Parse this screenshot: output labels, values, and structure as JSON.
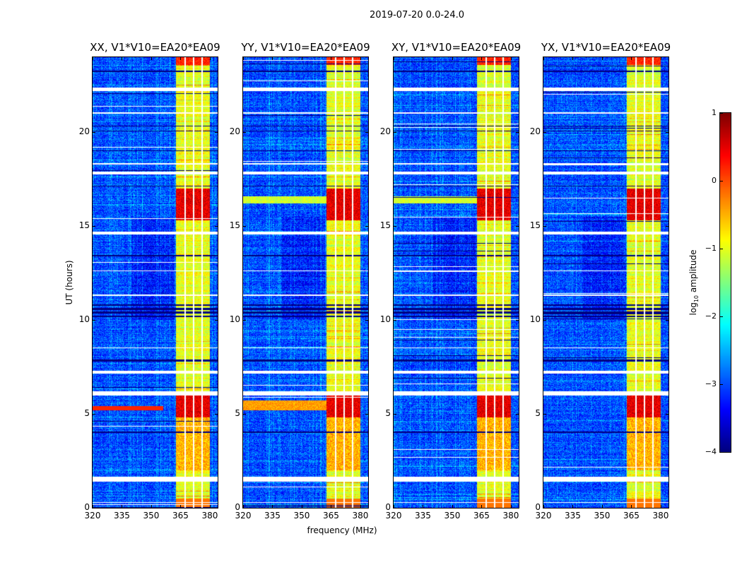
{
  "figure": {
    "suptitle": "2019-07-20 0.0-24.0"
  },
  "chart_data": {
    "type": "heatmap",
    "xlabel": "frequency (MHz)",
    "ylabel": "UT (hours)",
    "xlim": [
      320,
      384
    ],
    "ylim": [
      0,
      24
    ],
    "xticks": [
      "320",
      "335",
      "350",
      "365",
      "380"
    ],
    "xtick_values": [
      320,
      335,
      350,
      365,
      380
    ],
    "yticks": [
      "0",
      "5",
      "10",
      "15",
      "20"
    ],
    "ytick_values": [
      0,
      5,
      10,
      15,
      20
    ],
    "colorbar": {
      "label_prefix": "log",
      "label_sub": "10",
      "label_suffix": " amplitude",
      "range": [
        -4,
        1
      ],
      "ticks": [
        "1",
        "0",
        "−1",
        "−2",
        "−3",
        "−4"
      ],
      "tick_values": [
        1,
        0,
        -1,
        -2,
        -3,
        -4
      ],
      "colormap": "jet"
    },
    "panels": [
      {
        "title": "XX, V1*V10=EA20*EA09",
        "seed": 11
      },
      {
        "title": "YY, V1*V10=EA20*EA09",
        "seed": 23
      },
      {
        "title": "XY, V1*V10=EA20*EA09",
        "seed": 37
      },
      {
        "title": "YX, V1*V10=EA20*EA09",
        "seed": 53
      }
    ],
    "background_level": -3.0,
    "rfi_band_mhz": [
      362.5,
      380
    ],
    "rfi_band_level": -1.0,
    "strong_rfi_hours": [
      [
        4.8,
        6.0
      ],
      [
        15.3,
        17.0
      ]
    ],
    "strong_rfi_level": 0.8,
    "flagged_hours": [
      [
        0.25,
        0.3
      ],
      [
        1.4,
        1.65
      ],
      [
        6.0,
        6.2
      ],
      [
        7.15,
        7.3
      ],
      [
        8.5,
        8.55
      ],
      [
        11.3,
        11.35
      ],
      [
        12.6,
        12.65
      ],
      [
        14.55,
        14.7
      ],
      [
        17.75,
        17.9
      ],
      [
        18.3,
        18.35
      ],
      [
        21.0,
        21.05
      ],
      [
        22.2,
        22.4
      ]
    ],
    "dropout_hours": [
      [
        4.0,
        4.05
      ],
      [
        7.8,
        7.9
      ],
      [
        10.15,
        10.25
      ],
      [
        10.35,
        10.45
      ],
      [
        10.55,
        10.65
      ],
      [
        10.75,
        10.85
      ],
      [
        13.4,
        13.45
      ],
      [
        17.1,
        17.15
      ],
      [
        19.0,
        19.05
      ],
      [
        20.05,
        20.1
      ],
      [
        20.3,
        20.35
      ],
      [
        23.2,
        23.3
      ]
    ]
  }
}
